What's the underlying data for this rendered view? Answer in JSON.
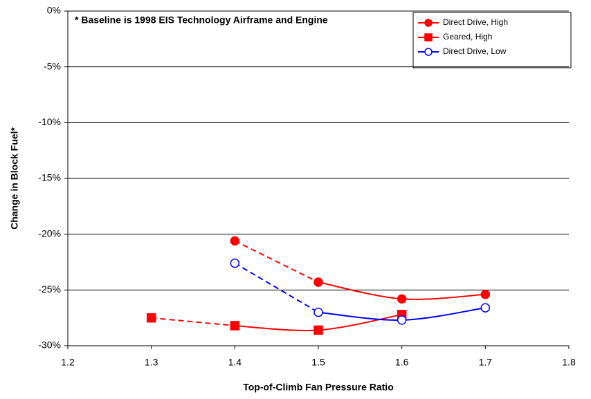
{
  "chart_data": {
    "type": "line",
    "annotation": "* Baseline is 1998 EIS Technology Airframe and Engine",
    "x_label": "Top-of-Climb Fan Pressure Ratio",
    "y_label": "Change in Block Fuel*",
    "xlim": [
      1.2,
      1.8
    ],
    "xticks": [
      1.2,
      1.3,
      1.4,
      1.5,
      1.6,
      1.7,
      1.8
    ],
    "ylim": [
      -30,
      0
    ],
    "yticks": [
      {
        "value": 0,
        "label": "0%"
      },
      {
        "value": -5,
        "label": "-5%"
      },
      {
        "value": -10,
        "label": "-10%"
      },
      {
        "value": -15,
        "label": "-15%"
      },
      {
        "value": -20,
        "label": "-20%"
      },
      {
        "value": -25,
        "label": "-25%"
      },
      {
        "value": -30,
        "label": "-30%"
      }
    ],
    "grid": true,
    "legend": "top-right",
    "series": [
      {
        "name": "Direct Drive, High",
        "color": "#ff0000",
        "marker": "circle",
        "filled": true,
        "dashed_segments": 1,
        "x": [
          1.4,
          1.5,
          1.6,
          1.7
        ],
        "values": [
          -20.6,
          -24.3,
          -25.8,
          -25.4
        ]
      },
      {
        "name": "Geared, High",
        "color": "#ff0000",
        "marker": "square",
        "filled": true,
        "dashed_segments": 1,
        "x": [
          1.3,
          1.4,
          1.5,
          1.6
        ],
        "values": [
          -27.5,
          -28.2,
          -28.6,
          -27.2
        ]
      },
      {
        "name": "Direct Drive, Low",
        "color": "#0000ff",
        "marker": "circle",
        "filled": false,
        "dashed_segments": 1,
        "x": [
          1.4,
          1.5,
          1.6,
          1.7
        ],
        "values": [
          -22.6,
          -27.0,
          -27.7,
          -26.6
        ]
      }
    ]
  }
}
